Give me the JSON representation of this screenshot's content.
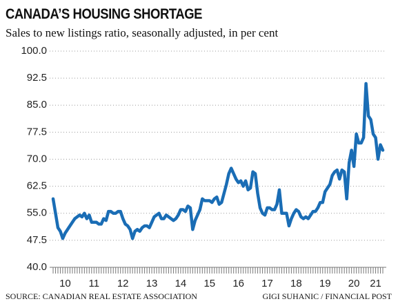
{
  "chart_data": {
    "type": "line",
    "title": "CANADA’S HOUSING SHORTAGE",
    "subtitle": "Sales to new listings ratio, seasonally adjusted, in per cent",
    "source": "SOURCE: CANADIAN REAL ESTATE ASSOCIATION",
    "credit": "GIGI SUHANIC / FINANCIAL POST",
    "categories": [
      null,
      null,
      null,
      null,
      null,
      "10",
      null,
      null,
      null,
      null,
      null,
      null,
      null,
      null,
      null,
      null,
      null,
      "11",
      null,
      null,
      null,
      null,
      null,
      null,
      null,
      null,
      null,
      null,
      null,
      "12",
      null,
      null,
      null,
      null,
      null,
      null,
      null,
      null,
      null,
      null,
      null,
      "13",
      null,
      null,
      null,
      null,
      null,
      null,
      null,
      null,
      null,
      null,
      null,
      "14",
      null,
      null,
      null,
      null,
      null,
      null,
      null,
      null,
      null,
      null,
      null,
      "15",
      null,
      null,
      null,
      null,
      null,
      null,
      null,
      null,
      null,
      null,
      null,
      "16",
      null,
      null,
      null,
      null,
      null,
      null,
      null,
      null,
      null,
      null,
      null,
      "17",
      null,
      null,
      null,
      null,
      null,
      null,
      null,
      null,
      null,
      null,
      null,
      "18",
      null,
      null,
      null,
      null,
      null,
      null,
      null,
      null,
      null,
      null,
      null,
      "19",
      null,
      null,
      null,
      null,
      null,
      null,
      null,
      null,
      null,
      null,
      null,
      "20",
      null,
      null,
      null,
      null,
      null,
      null,
      null,
      null,
      "21",
      null,
      null,
      null
    ],
    "series": [
      {
        "name": "Sales to new listings ratio",
        "color": "#1a6db5",
        "values": [
          59,
          55,
          51,
          50,
          48,
          49.5,
          50.5,
          51.5,
          52.5,
          53.5,
          54,
          54.5,
          54,
          55,
          53.5,
          54.5,
          52.5,
          52.5,
          52.5,
          52,
          52,
          53.5,
          53,
          55.5,
          55.5,
          55,
          55,
          55.5,
          55.5,
          53.5,
          52,
          51.5,
          50.5,
          48,
          50,
          50.5,
          50,
          51,
          51.5,
          51.5,
          51,
          52.5,
          54,
          54.5,
          55,
          53.5,
          53.5,
          54.5,
          54,
          53.5,
          53,
          53.5,
          54.5,
          56,
          56,
          55.5,
          57,
          56.5,
          50.5,
          53,
          54.5,
          56,
          59,
          58.5,
          58.5,
          58.5,
          58,
          59,
          59.5,
          57.5,
          58,
          60.5,
          63,
          66,
          67.5,
          66,
          64.5,
          63.5,
          64,
          62.5,
          64,
          61.5,
          62,
          66.5,
          66,
          60.5,
          56.5,
          55,
          54.5,
          56.5,
          56.5,
          56,
          56,
          57.5,
          61.5,
          55,
          55,
          55,
          51.5,
          53.5,
          55,
          56,
          55.5,
          54,
          53.5,
          54,
          53.5,
          54.5,
          55.5,
          55.5,
          56.5,
          58,
          58,
          61,
          62,
          63,
          65.5,
          66.5,
          67,
          64.5,
          67,
          66.5,
          59,
          69,
          72.5,
          68,
          77,
          74.5,
          74.5,
          76,
          91,
          82,
          81,
          77,
          76,
          70,
          74,
          72.5
        ]
      }
    ],
    "ylim": [
      40,
      100
    ],
    "yticks": [
      {
        "value": 40,
        "label": "40.0"
      },
      47.5,
      {
        "value": 55,
        "label": "55.0"
      },
      62.5,
      {
        "value": 70,
        "label": "70.0"
      },
      77.5,
      {
        "value": 85,
        "label": "85.0"
      },
      92.5,
      {
        "value": 100,
        "label": "100.0"
      }
    ],
    "grid": true
  }
}
